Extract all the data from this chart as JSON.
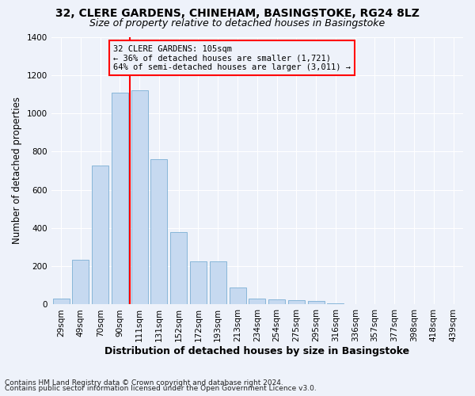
{
  "title1": "32, CLERE GARDENS, CHINEHAM, BASINGSTOKE, RG24 8LZ",
  "title2": "Size of property relative to detached houses in Basingstoke",
  "xlabel": "Distribution of detached houses by size in Basingstoke",
  "ylabel": "Number of detached properties",
  "bar_labels": [
    "29sqm",
    "49sqm",
    "70sqm",
    "90sqm",
    "111sqm",
    "131sqm",
    "152sqm",
    "172sqm",
    "193sqm",
    "213sqm",
    "234sqm",
    "254sqm",
    "275sqm",
    "295sqm",
    "316sqm",
    "336sqm",
    "357sqm",
    "377sqm",
    "398sqm",
    "418sqm",
    "439sqm"
  ],
  "bar_values": [
    30,
    235,
    725,
    1110,
    1120,
    760,
    380,
    225,
    225,
    90,
    30,
    25,
    22,
    18,
    8,
    0,
    0,
    0,
    0,
    0,
    0
  ],
  "bar_color": "#c6d9f0",
  "bar_edge_color": "#7bafd4",
  "vline_color": "red",
  "annotation_text_line1": "32 CLERE GARDENS: 105sqm",
  "annotation_text_line2": "← 36% of detached houses are smaller (1,721)",
  "annotation_text_line3": "64% of semi-detached houses are larger (3,011) →",
  "annotation_box_color": "red",
  "ylim": [
    0,
    1400
  ],
  "yticks": [
    0,
    200,
    400,
    600,
    800,
    1000,
    1200,
    1400
  ],
  "footnote1": "Contains HM Land Registry data © Crown copyright and database right 2024.",
  "footnote2": "Contains public sector information licensed under the Open Government Licence v3.0.",
  "background_color": "#eef2fa",
  "grid_color": "#ffffff",
  "title_fontsize": 10,
  "subtitle_fontsize": 9,
  "axis_label_fontsize": 8.5,
  "tick_fontsize": 7.5,
  "annotation_fontsize": 7.5,
  "footnote_fontsize": 6.5
}
